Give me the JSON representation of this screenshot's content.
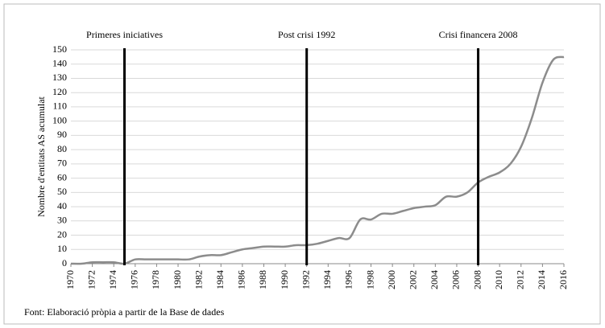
{
  "chart_data": {
    "type": "line",
    "y_label": "Nombre d'entitats AS acumulat",
    "source": "Font: Elaboració pròpia a partir de la Base de dades",
    "x": [
      1970,
      1971,
      1972,
      1973,
      1974,
      1975,
      1976,
      1977,
      1978,
      1979,
      1980,
      1981,
      1982,
      1983,
      1984,
      1985,
      1986,
      1987,
      1988,
      1989,
      1990,
      1991,
      1992,
      1993,
      1994,
      1995,
      1996,
      1997,
      1998,
      1999,
      2000,
      2001,
      2002,
      2003,
      2004,
      2005,
      2006,
      2007,
      2008,
      2009,
      2010,
      2011,
      2012,
      2013,
      2014,
      2015,
      2016
    ],
    "series": [
      {
        "color": "#8c8c8c",
        "values": [
          0,
          0,
          1,
          1,
          1,
          0,
          3,
          3,
          3,
          3,
          3,
          3,
          5,
          6,
          6,
          8,
          10,
          11,
          12,
          12,
          12,
          13,
          13,
          14,
          16,
          18,
          18,
          31,
          31,
          35,
          35,
          37,
          39,
          40,
          41,
          47,
          47,
          50,
          57,
          61,
          64,
          70,
          82,
          102,
          127,
          143,
          145
        ]
      }
    ],
    "xlim": [
      1970,
      2016
    ],
    "xticks": [
      1970,
      1972,
      1974,
      1976,
      1978,
      1980,
      1982,
      1984,
      1986,
      1988,
      1990,
      1992,
      1994,
      1996,
      1998,
      2000,
      2002,
      2004,
      2006,
      2008,
      2010,
      2012,
      2014,
      2016
    ],
    "ylim": [
      0,
      150
    ],
    "yticks": [
      0,
      10,
      20,
      30,
      40,
      50,
      60,
      70,
      80,
      90,
      100,
      110,
      120,
      130,
      140,
      150
    ],
    "grid": true,
    "annotations": [
      {
        "text": "Primeres iniciatives",
        "x": 1975
      },
      {
        "text": "Post crisi 1992",
        "x": 1992
      },
      {
        "text": "Crisi financera 2008",
        "x": 2008
      }
    ]
  }
}
